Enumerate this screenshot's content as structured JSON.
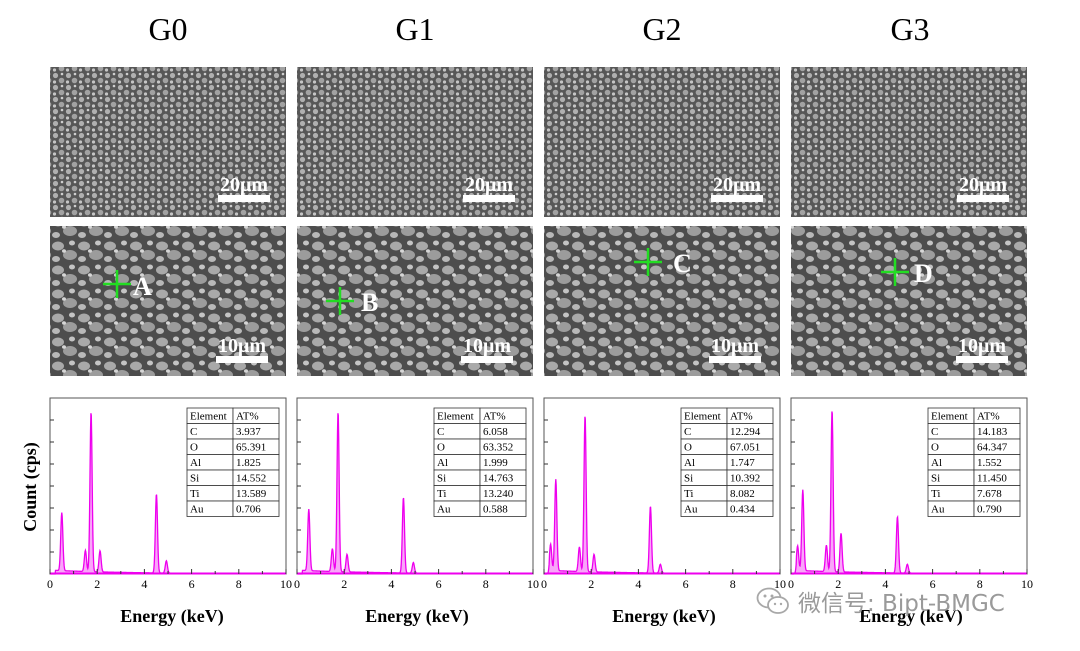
{
  "figure": {
    "groups": [
      {
        "id": "G0",
        "label": "G0",
        "sem_top": {
          "scale_bar": "20μm"
        },
        "sem_bottom": {
          "scale_bar": "10μm",
          "point": "A"
        },
        "eds": {
          "table": {
            "header": [
              "Element",
              "AT%"
            ],
            "rows": [
              [
                "C",
                "3.937"
              ],
              [
                "O",
                "65.391"
              ],
              [
                "Al",
                "1.825"
              ],
              [
                "Si",
                "14.552"
              ],
              [
                "Ti",
                "13.589"
              ],
              [
                "Au",
                "0.706"
              ]
            ]
          }
        }
      },
      {
        "id": "G1",
        "label": "G1",
        "sem_top": {
          "scale_bar": "20μm"
        },
        "sem_bottom": {
          "scale_bar": "10μm",
          "point": "B"
        },
        "eds": {
          "table": {
            "header": [
              "Element",
              "AT%"
            ],
            "rows": [
              [
                "C",
                "6.058"
              ],
              [
                "O",
                "63.352"
              ],
              [
                "Al",
                "1.999"
              ],
              [
                "Si",
                "14.763"
              ],
              [
                "Ti",
                "13.240"
              ],
              [
                "Au",
                "0.588"
              ]
            ]
          }
        }
      },
      {
        "id": "G2",
        "label": "G2",
        "sem_top": {
          "scale_bar": "20μm"
        },
        "sem_bottom": {
          "scale_bar": "10μm",
          "point": "C"
        },
        "eds": {
          "table": {
            "header": [
              "Element",
              "AT%"
            ],
            "rows": [
              [
                "C",
                "12.294"
              ],
              [
                "O",
                "67.051"
              ],
              [
                "Al",
                "1.747"
              ],
              [
                "Si",
                "10.392"
              ],
              [
                "Ti",
                "8.082"
              ],
              [
                "Au",
                "0.434"
              ]
            ]
          }
        }
      },
      {
        "id": "G3",
        "label": "G3",
        "sem_top": {
          "scale_bar": "20μm"
        },
        "sem_bottom": {
          "scale_bar": "10μm",
          "point": "D"
        },
        "eds": {
          "table": {
            "header": [
              "Element",
              "AT%"
            ],
            "rows": [
              [
                "C",
                "14.183"
              ],
              [
                "O",
                "64.347"
              ],
              [
                "Al",
                "1.552"
              ],
              [
                "Si",
                "11.450"
              ],
              [
                "Ti",
                "7.678"
              ],
              [
                "Au",
                "0.790"
              ]
            ]
          }
        }
      }
    ],
    "watermark": "微信号: Bipt-BMGC"
  },
  "chart_data": [
    {
      "type": "line",
      "title": "G0",
      "xlabel": "Energy (keV)",
      "ylabel": "Count (cps)",
      "xlim": [
        0,
        10
      ],
      "ylim": [
        0,
        100
      ],
      "xticks": [
        0,
        2,
        4,
        6,
        8,
        10
      ],
      "color": "#ee00ee",
      "peaks": [
        {
          "x": 0.5,
          "y": 33
        },
        {
          "x": 1.5,
          "y": 12
        },
        {
          "x": 1.74,
          "y": 91
        },
        {
          "x": 2.12,
          "y": 12
        },
        {
          "x": 4.51,
          "y": 45
        },
        {
          "x": 4.93,
          "y": 7
        }
      ]
    },
    {
      "type": "line",
      "title": "G1",
      "xlabel": "Energy (keV)",
      "ylabel": "",
      "xlim": [
        0,
        10
      ],
      "ylim": [
        0,
        100
      ],
      "xticks": [
        0,
        2,
        4,
        6,
        8,
        10
      ],
      "color": "#ee00ee",
      "peaks": [
        {
          "x": 0.5,
          "y": 35
        },
        {
          "x": 1.5,
          "y": 13
        },
        {
          "x": 1.74,
          "y": 91
        },
        {
          "x": 2.12,
          "y": 10
        },
        {
          "x": 4.51,
          "y": 43
        },
        {
          "x": 4.93,
          "y": 6
        }
      ]
    },
    {
      "type": "line",
      "title": "G2",
      "xlabel": "Energy (keV)",
      "ylabel": "",
      "xlim": [
        0,
        10
      ],
      "ylim": [
        0,
        100
      ],
      "xticks": [
        0,
        2,
        4,
        6,
        8,
        10
      ],
      "color": "#ee00ee",
      "peaks": [
        {
          "x": 0.28,
          "y": 15
        },
        {
          "x": 0.5,
          "y": 52
        },
        {
          "x": 1.5,
          "y": 14
        },
        {
          "x": 1.74,
          "y": 89
        },
        {
          "x": 2.12,
          "y": 10
        },
        {
          "x": 4.51,
          "y": 38
        },
        {
          "x": 4.93,
          "y": 5
        }
      ]
    },
    {
      "type": "line",
      "title": "G3",
      "xlabel": "Energy (keV)",
      "ylabel": "",
      "xlim": [
        0,
        10
      ],
      "ylim": [
        0,
        100
      ],
      "xticks": [
        0,
        2,
        4,
        6,
        8,
        10
      ],
      "color": "#ee00ee",
      "peaks": [
        {
          "x": 0.28,
          "y": 14
        },
        {
          "x": 0.5,
          "y": 46
        },
        {
          "x": 1.5,
          "y": 15
        },
        {
          "x": 1.74,
          "y": 92
        },
        {
          "x": 2.12,
          "y": 22
        },
        {
          "x": 4.51,
          "y": 32
        },
        {
          "x": 4.93,
          "y": 5
        }
      ]
    }
  ]
}
